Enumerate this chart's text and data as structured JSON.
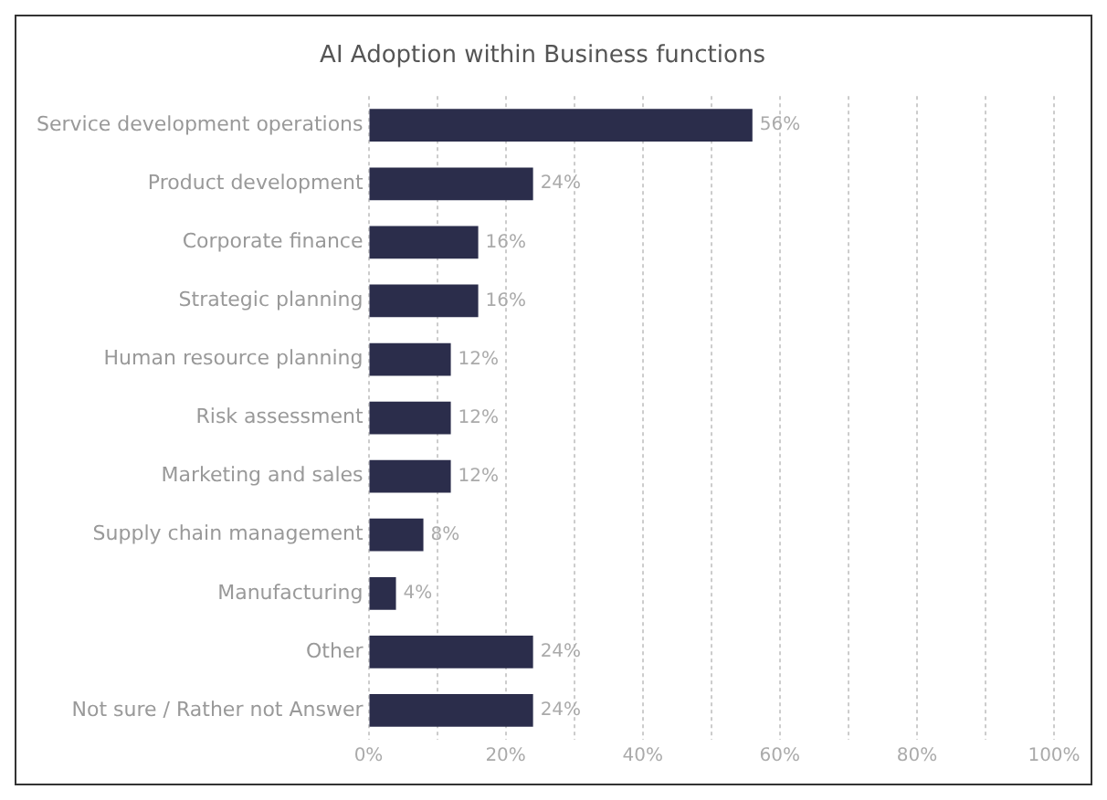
{
  "chart_data": {
    "type": "bar",
    "orientation": "horizontal",
    "title": "AI Adoption within Business functions",
    "categories": [
      "Service development operations",
      "Product development",
      "Corporate finance",
      "Strategic planning",
      "Human resource planning",
      "Risk assessment",
      "Marketing and sales",
      "Supply chain management",
      "Manufacturing",
      "Other",
      "Not sure / Rather not Answer"
    ],
    "values": [
      56,
      24,
      16,
      16,
      12,
      12,
      12,
      8,
      4,
      24,
      24
    ],
    "value_labels": [
      "56%",
      "24%",
      "16%",
      "16%",
      "12%",
      "12%",
      "12%",
      "8%",
      "4%",
      "24%",
      "24%"
    ],
    "color": "#2b2d4b",
    "xlim": [
      0,
      100
    ],
    "xticks": [
      {
        "value": 0,
        "label": "0%"
      },
      {
        "value": 10,
        "label": null
      },
      {
        "value": 20,
        "label": "20%"
      },
      {
        "value": 30,
        "label": null
      },
      {
        "value": 40,
        "label": "40%"
      },
      {
        "value": 50,
        "label": null
      },
      {
        "value": 60,
        "label": "60%"
      },
      {
        "value": 70,
        "label": null
      },
      {
        "value": 80,
        "label": "80%"
      },
      {
        "value": 90,
        "label": null
      },
      {
        "value": 100,
        "label": "100%"
      }
    ],
    "grid": "x",
    "legend": false
  }
}
